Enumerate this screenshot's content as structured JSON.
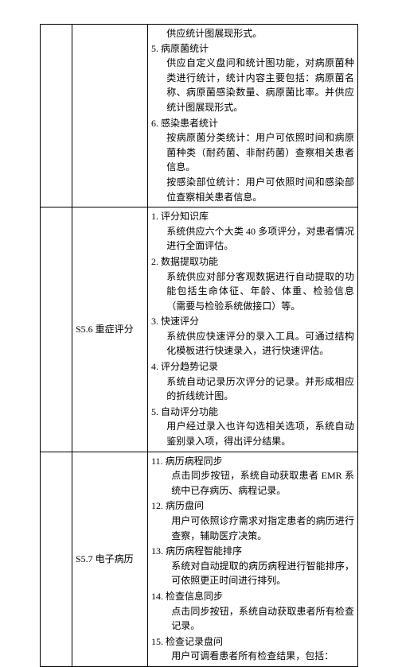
{
  "rows": [
    {
      "col1": "",
      "col2": "",
      "topFragment": "供应统计图展现形式。",
      "items": [
        {
          "num": "5.",
          "title": "病原菌统计",
          "body": "供应自定义盘问和统计图功能，对病原菌种类进行统计，统计内容主要包括：病原菌名称、病原菌感染数量、病原菌比率。并供应统计图展现形式。"
        },
        {
          "num": "6.",
          "title": "感染患者统计",
          "body": "按病原菌分类统计：用户可依照时间和病原菌种类（耐药菌、非耐药菌）查察相关患者信息。\n按感染部位统计：用户可依照时间和感染部位查察相关患者信息。"
        }
      ]
    },
    {
      "col1": "",
      "col2": "S5.6 重症评分",
      "items": [
        {
          "num": "1.",
          "title": "评分知识库",
          "body": "系统供应六个大类 40 多项评分，对患者情况进行全面评估。"
        },
        {
          "num": "2.",
          "title": "数据提取功能",
          "body": "系统供应对部分客观数据进行自动提取的功能包括生命体征、年龄、体重、检验信息（需要与检验系统做接口）等。"
        },
        {
          "num": "3.",
          "title": "快速评分",
          "body": "系统供应快速评分的录入工具。可通过结构化模板进行快速录入，进行快速评估。"
        },
        {
          "num": "4.",
          "title": "评分趋势记录",
          "body": "系统自动记录历次评分的记录。并形成相应的折线统计图。"
        },
        {
          "num": "5.",
          "title": "自动评分功能",
          "body": "用户经过录入也许勾选相关选项，系统自动鉴别录入项，得出评分结果。"
        }
      ]
    },
    {
      "col1": "",
      "col2": "S5.7 电子病历",
      "wideNum": true,
      "items": [
        {
          "num": "11.",
          "title": "病历病程同步",
          "body": "点击同步按钮，系统自动获取患者 EMR 系统中已存病历、病程记录。"
        },
        {
          "num": "12.",
          "title": "病历盘问",
          "body": "用户可依照诊疗需求对指定患者的病历进行查察，辅助医疗决策。"
        },
        {
          "num": "13.",
          "title": "病历病程智能排序",
          "body": "系统对自动提取的病历病程进行智能排序，可依照更正时间进行排列。"
        },
        {
          "num": "14.",
          "title": "检查信息同步",
          "body": "点击同步按钮，系统自动获取患者所有检查记录。"
        },
        {
          "num": "15.",
          "title": "检查记录盘问",
          "body": "用户可调看患者所有检查结果，包括："
        }
      ]
    }
  ]
}
